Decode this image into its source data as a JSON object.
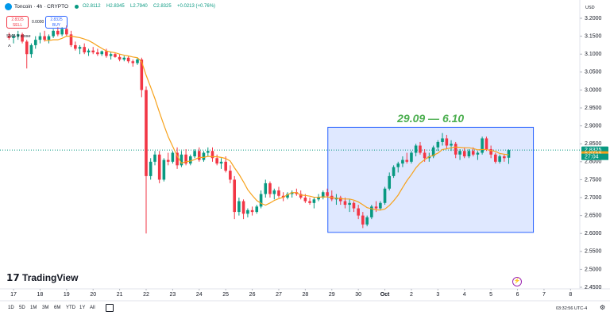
{
  "header": {
    "symbol": "Toncoin · 4h · CRYPTO",
    "open": "O2.8112",
    "high": "H2.8345",
    "low": "L2.7940",
    "close": "C2.8325",
    "change": "+0.0213 (+0.76%)"
  },
  "trade": {
    "sell_price": "2.8325",
    "sell": "SELL",
    "spread": "0.0000",
    "buy_price": "2.8325",
    "buy": "BUY"
  },
  "currency": "USD",
  "logo": "TradingView",
  "ranges": [
    "1D",
    "5D",
    "1M",
    "3M",
    "6M",
    "YTD",
    "1Y",
    "All"
  ],
  "clock": "03:32:56 UTC-4",
  "chart_data": {
    "type": "candlestick",
    "up_color": "#089981",
    "down_color": "#f23645",
    "grid": false,
    "xlim": [
      16.49,
      38.35
    ],
    "ylim": [
      2.4456,
      3.2288
    ],
    "xticks": [
      17,
      18,
      19,
      20,
      21,
      22,
      23,
      24,
      25,
      26,
      27,
      28,
      29,
      30,
      {
        "value": 31,
        "label": "Oct"
      },
      {
        "value": 32,
        "label": "2"
      },
      {
        "value": 33,
        "label": "3"
      },
      {
        "value": 34,
        "label": "4"
      },
      {
        "value": 35,
        "label": "5"
      },
      {
        "value": 36,
        "label": "6"
      },
      {
        "value": 37,
        "label": "7"
      },
      {
        "value": 38,
        "label": "8"
      }
    ],
    "yticks": [
      {
        "value": 3.2,
        "label": "3.2000"
      },
      {
        "value": 3.15,
        "label": "3.1500"
      },
      {
        "value": 3.1,
        "label": "3.1000"
      },
      {
        "value": 3.05,
        "label": "3.0500"
      },
      {
        "value": 3.0,
        "label": "3.0000"
      },
      {
        "value": 2.95,
        "label": "2.9500"
      },
      {
        "value": 2.9,
        "label": "2.9000"
      },
      {
        "value": 2.85,
        "label": "2.8500"
      },
      {
        "value": 2.8,
        "label": "2.8000"
      },
      {
        "value": 2.75,
        "label": "2.7500"
      },
      {
        "value": 2.7,
        "label": "2.7000"
      },
      {
        "value": 2.65,
        "label": "2.6500"
      },
      {
        "value": 2.6,
        "label": "2.6000"
      },
      {
        "value": 2.55,
        "label": "2.5500"
      },
      {
        "value": 2.5,
        "label": "2.5000"
      },
      {
        "value": 2.45,
        "label": "2.4500"
      }
    ],
    "x": [
      16.83,
      17,
      17.17,
      17.33,
      17.5,
      17.67,
      17.83,
      18,
      18.17,
      18.33,
      18.5,
      18.67,
      18.83,
      19,
      19.17,
      19.33,
      19.5,
      19.67,
      19.83,
      20,
      20.17,
      20.33,
      20.5,
      20.67,
      20.83,
      21,
      21.17,
      21.33,
      21.5,
      21.67,
      21.83,
      22,
      22.17,
      22.33,
      22.5,
      22.67,
      22.83,
      23,
      23.17,
      23.33,
      23.5,
      23.67,
      23.83,
      24,
      24.17,
      24.33,
      24.5,
      24.67,
      24.83,
      25,
      25.17,
      25.33,
      25.5,
      25.67,
      25.83,
      26,
      26.17,
      26.33,
      26.5,
      26.67,
      26.83,
      27,
      27.17,
      27.33,
      27.5,
      27.67,
      27.83,
      28,
      28.17,
      28.33,
      28.5,
      28.67,
      28.83,
      29,
      29.17,
      29.33,
      29.5,
      29.67,
      29.83,
      30,
      30.17,
      30.33,
      30.5,
      30.67,
      30.83,
      31,
      31.17,
      31.33,
      31.5,
      31.67,
      31.83,
      32,
      32.17,
      32.33,
      32.5,
      32.67,
      32.83,
      33,
      33.17,
      33.33,
      33.5,
      33.67,
      33.83,
      34,
      34.17,
      34.33,
      34.5,
      34.67,
      34.83,
      35,
      35.17,
      35.33,
      35.5,
      35.67
    ],
    "ohlc": [
      [
        3.15,
        3.16,
        3.14,
        3.145
      ],
      [
        3.145,
        3.155,
        3.13,
        3.15
      ],
      [
        3.15,
        3.165,
        3.14,
        3.155
      ],
      [
        3.155,
        3.16,
        3.13,
        3.135
      ],
      [
        3.135,
        3.14,
        3.06,
        3.1
      ],
      [
        3.1,
        3.13,
        3.09,
        3.125
      ],
      [
        3.125,
        3.15,
        3.115,
        3.14
      ],
      [
        3.14,
        3.16,
        3.13,
        3.15
      ],
      [
        3.15,
        3.165,
        3.135,
        3.14
      ],
      [
        3.14,
        3.155,
        3.13,
        3.15
      ],
      [
        3.15,
        3.17,
        3.145,
        3.165
      ],
      [
        3.165,
        3.175,
        3.15,
        3.155
      ],
      [
        3.155,
        3.175,
        3.15,
        3.17
      ],
      [
        3.17,
        3.18,
        3.15,
        3.155
      ],
      [
        3.155,
        3.165,
        3.12,
        3.125
      ],
      [
        3.125,
        3.135,
        3.11,
        3.115
      ],
      [
        3.115,
        3.125,
        3.1,
        3.12
      ],
      [
        3.12,
        3.13,
        3.1,
        3.105
      ],
      [
        3.105,
        3.115,
        3.095,
        3.11
      ],
      [
        3.11,
        3.12,
        3.1,
        3.105
      ],
      [
        3.105,
        3.115,
        3.095,
        3.1
      ],
      [
        3.1,
        3.11,
        3.095,
        3.108
      ],
      [
        3.108,
        3.115,
        3.09,
        3.095
      ],
      [
        3.095,
        3.105,
        3.085,
        3.1
      ],
      [
        3.1,
        3.105,
        3.09,
        3.092
      ],
      [
        3.092,
        3.1,
        3.08,
        3.085
      ],
      [
        3.085,
        3.095,
        3.08,
        3.09
      ],
      [
        3.09,
        3.095,
        3.075,
        3.08
      ],
      [
        3.08,
        3.085,
        3.065,
        3.075
      ],
      [
        3.075,
        3.09,
        3.07,
        3.085
      ],
      [
        3.085,
        3.09,
        2.98,
        3.0
      ],
      [
        3.0,
        3.01,
        2.6,
        2.76
      ],
      [
        2.76,
        2.81,
        2.75,
        2.8
      ],
      [
        2.8,
        2.83,
        2.79,
        2.82
      ],
      [
        2.82,
        2.83,
        2.74,
        2.75
      ],
      [
        2.75,
        2.81,
        2.745,
        2.805
      ],
      [
        2.805,
        2.825,
        2.79,
        2.8
      ],
      [
        2.8,
        2.83,
        2.795,
        2.825
      ],
      [
        2.825,
        2.84,
        2.78,
        2.79
      ],
      [
        2.79,
        2.83,
        2.785,
        2.82
      ],
      [
        2.82,
        2.835,
        2.79,
        2.795
      ],
      [
        2.795,
        2.82,
        2.79,
        2.815
      ],
      [
        2.815,
        2.835,
        2.81,
        2.83
      ],
      [
        2.83,
        2.84,
        2.8,
        2.805
      ],
      [
        2.805,
        2.83,
        2.8,
        2.825
      ],
      [
        2.825,
        2.84,
        2.815,
        2.83
      ],
      [
        2.83,
        2.84,
        2.8,
        2.81
      ],
      [
        2.81,
        2.82,
        2.79,
        2.795
      ],
      [
        2.795,
        2.81,
        2.78,
        2.8
      ],
      [
        2.8,
        2.815,
        2.77,
        2.775
      ],
      [
        2.775,
        2.79,
        2.74,
        2.75
      ],
      [
        2.75,
        2.76,
        2.64,
        2.66
      ],
      [
        2.66,
        2.7,
        2.65,
        2.69
      ],
      [
        2.69,
        2.695,
        2.64,
        2.655
      ],
      [
        2.655,
        2.67,
        2.645,
        2.665
      ],
      [
        2.665,
        2.675,
        2.65,
        2.66
      ],
      [
        2.66,
        2.68,
        2.655,
        2.675
      ],
      [
        2.675,
        2.72,
        2.67,
        2.71
      ],
      [
        2.71,
        2.75,
        2.7,
        2.74
      ],
      [
        2.74,
        2.745,
        2.7,
        2.71
      ],
      [
        2.71,
        2.725,
        2.695,
        2.72
      ],
      [
        2.72,
        2.73,
        2.7,
        2.705
      ],
      [
        2.705,
        2.715,
        2.69,
        2.7
      ],
      [
        2.7,
        2.715,
        2.695,
        2.71
      ],
      [
        2.71,
        2.72,
        2.7,
        2.715
      ],
      [
        2.715,
        2.725,
        2.705,
        2.71
      ],
      [
        2.71,
        2.72,
        2.695,
        2.7
      ],
      [
        2.7,
        2.71,
        2.685,
        2.69
      ],
      [
        2.69,
        2.7,
        2.68,
        2.685
      ],
      [
        2.685,
        2.7,
        2.67,
        2.695
      ],
      [
        2.695,
        2.71,
        2.69,
        2.7
      ],
      [
        2.7,
        2.72,
        2.695,
        2.715
      ],
      [
        2.715,
        2.725,
        2.7,
        2.705
      ],
      [
        2.705,
        2.72,
        2.69,
        2.695
      ],
      [
        2.695,
        2.71,
        2.68,
        2.7
      ],
      [
        2.7,
        2.705,
        2.68,
        2.69
      ],
      [
        2.69,
        2.7,
        2.67,
        2.68
      ],
      [
        2.68,
        2.695,
        2.66,
        2.685
      ],
      [
        2.685,
        2.69,
        2.66,
        2.67
      ],
      [
        2.67,
        2.68,
        2.64,
        2.65
      ],
      [
        2.65,
        2.66,
        2.615,
        2.625
      ],
      [
        2.625,
        2.65,
        2.62,
        2.645
      ],
      [
        2.645,
        2.68,
        2.64,
        2.675
      ],
      [
        2.675,
        2.69,
        2.66,
        2.67
      ],
      [
        2.67,
        2.69,
        2.665,
        2.685
      ],
      [
        2.685,
        2.73,
        2.68,
        2.725
      ],
      [
        2.725,
        2.77,
        2.72,
        2.76
      ],
      [
        2.76,
        2.79,
        2.755,
        2.785
      ],
      [
        2.785,
        2.8,
        2.77,
        2.795
      ],
      [
        2.795,
        2.815,
        2.785,
        2.805
      ],
      [
        2.805,
        2.825,
        2.795,
        2.8
      ],
      [
        2.8,
        2.83,
        2.795,
        2.825
      ],
      [
        2.825,
        2.85,
        2.815,
        2.845
      ],
      [
        2.845,
        2.855,
        2.82,
        2.825
      ],
      [
        2.825,
        2.835,
        2.8,
        2.81
      ],
      [
        2.81,
        2.825,
        2.8,
        2.815
      ],
      [
        2.815,
        2.845,
        2.81,
        2.84
      ],
      [
        2.84,
        2.86,
        2.83,
        2.855
      ],
      [
        2.855,
        2.88,
        2.845,
        2.865
      ],
      [
        2.865,
        2.875,
        2.835,
        2.845
      ],
      [
        2.845,
        2.86,
        2.83,
        2.85
      ],
      [
        2.85,
        2.855,
        2.81,
        2.82
      ],
      [
        2.82,
        2.835,
        2.805,
        2.83
      ],
      [
        2.83,
        2.84,
        2.81,
        2.815
      ],
      [
        2.815,
        2.835,
        2.81,
        2.83
      ],
      [
        2.83,
        2.84,
        2.815,
        2.82
      ],
      [
        2.82,
        2.83,
        2.805,
        2.825
      ],
      [
        2.825,
        2.87,
        2.82,
        2.865
      ],
      [
        2.865,
        2.87,
        2.83,
        2.835
      ],
      [
        2.835,
        2.845,
        2.81,
        2.82
      ],
      [
        2.82,
        2.825,
        2.795,
        2.8
      ],
      [
        2.8,
        2.82,
        2.795,
        2.815
      ],
      [
        2.815,
        2.82,
        2.8,
        2.81
      ],
      [
        2.8112,
        2.8345,
        2.794,
        2.8325
      ]
    ],
    "sma": {
      "name": "SMA 9 close",
      "color": "#f7a21b",
      "values": [
        null,
        null,
        null,
        null,
        null,
        null,
        null,
        null,
        3.138,
        3.138,
        3.14,
        3.14,
        3.144,
        3.15,
        3.15,
        3.148,
        3.146,
        3.142,
        3.138,
        3.131,
        3.123,
        3.116,
        3.109,
        3.106,
        3.104,
        3.1,
        3.097,
        3.095,
        3.092,
        3.09,
        3.079,
        3.041,
        3.008,
        2.976,
        2.938,
        2.902,
        2.87,
        2.843,
        2.816,
        2.796,
        2.8,
        2.802,
        2.806,
        2.812,
        2.812,
        2.815,
        2.814,
        2.814,
        2.812,
        2.809,
        2.802,
        2.783,
        2.765,
        2.744,
        2.722,
        2.706,
        2.692,
        2.684,
        2.679,
        2.685,
        2.692,
        2.697,
        2.701,
        2.708,
        2.714,
        2.714,
        2.707,
        2.706,
        2.704,
        2.701,
        2.701,
        2.702,
        2.702,
        2.7,
        2.698,
        2.697,
        2.696,
        2.696,
        2.693,
        2.688,
        2.68,
        2.672,
        2.669,
        2.666,
        2.665,
        2.668,
        2.678,
        2.691,
        2.707,
        2.728,
        2.747,
        2.764,
        2.783,
        2.796,
        2.806,
        2.814,
        2.818,
        2.824,
        2.834,
        2.836,
        2.839,
        2.841,
        2.84,
        2.839,
        2.839,
        2.837,
        2.833,
        2.834,
        2.834,
        2.831,
        2.829,
        2.823,
        2.821,
        2.8193
      ]
    },
    "box": {
      "label": "29.09 — 6.10",
      "color": "#2962ff",
      "label_color": "#4caf50",
      "xlim": [
        28.85,
        36.6
      ],
      "ylim": [
        2.603,
        2.896
      ]
    },
    "price_tags": [
      {
        "value": 2.8325,
        "label": "2.8325",
        "color": "#089981"
      },
      {
        "value": 2.8193,
        "label": "2.8193",
        "color": "#f7a21b"
      }
    ],
    "countdown": "27:04"
  }
}
